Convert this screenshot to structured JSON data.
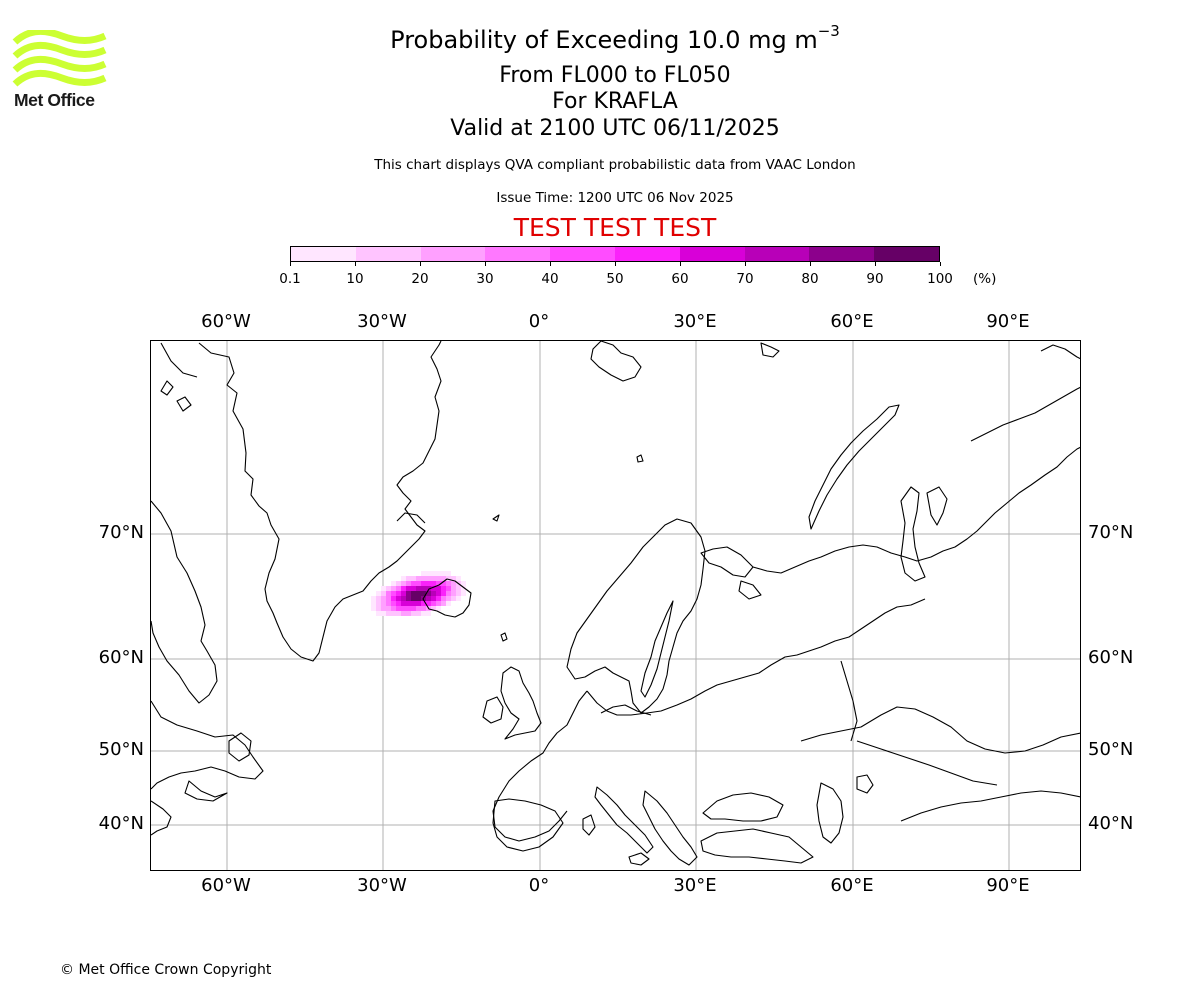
{
  "header": {
    "title_prefix": "Probability of Exceeding 10.0 mg m",
    "title_exponent": "−3",
    "levels": "From FL000 to FL050",
    "volcano": "For KRAFLA",
    "valid": "Valid at 2100 UTC 06/11/2025",
    "description": "This chart displays QVA compliant probabilistic data from VAAC London",
    "issue_time": "Issue Time: 1200 UTC 06 Nov 2025",
    "test_banner": "TEST TEST TEST"
  },
  "logo": {
    "text": "Met Office",
    "color": "#ccff33"
  },
  "colorbar": {
    "ticks": [
      "0.1",
      "10",
      "20",
      "30",
      "40",
      "50",
      "60",
      "70",
      "80",
      "90",
      "100"
    ],
    "units": "(%)",
    "colors": [
      "#ffe6ff",
      "#ffc4ff",
      "#ffa0ff",
      "#ff78ff",
      "#ff4cff",
      "#fa22fa",
      "#d800d8",
      "#b800b8",
      "#8c008c",
      "#660066"
    ]
  },
  "map": {
    "lon_labels": [
      "60°W",
      "30°W",
      "0°",
      "30°E",
      "60°E",
      "90°E"
    ],
    "lat_labels": [
      "70°N",
      "60°N",
      "50°N",
      "40°N"
    ],
    "coastline_color": "#000000",
    "grid_color": "#b0b0b0"
  },
  "footer": {
    "copyright": "© Met Office Crown Copyright"
  }
}
